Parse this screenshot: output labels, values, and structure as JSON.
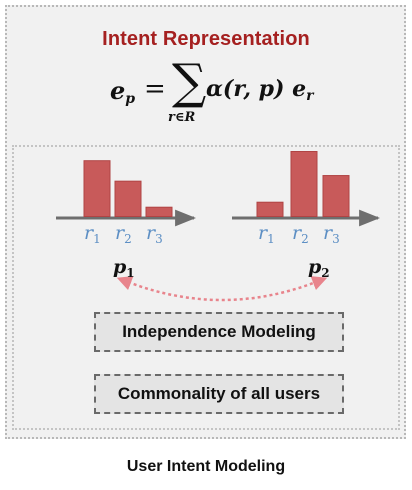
{
  "diagram": {
    "title": "Intent Representation",
    "caption": "User Intent Modeling",
    "formula": {
      "lhs_base": "e",
      "lhs_sub": "p",
      "equals": "=",
      "sum_symbol": "∑",
      "sum_index": "r∈R",
      "rhs": "α(r, p) e",
      "rhs_sub": "r"
    },
    "histograms": [
      {
        "label_base": "p",
        "label_sub": "1",
        "categories": [
          {
            "base": "r",
            "sub": "1"
          },
          {
            "base": "r",
            "sub": "2"
          },
          {
            "base": "r",
            "sub": "3"
          }
        ],
        "values": [
          0.9,
          0.57,
          0.15
        ]
      },
      {
        "label_base": "p",
        "label_sub": "2",
        "categories": [
          {
            "base": "r",
            "sub": "1"
          },
          {
            "base": "r",
            "sub": "2"
          },
          {
            "base": "r",
            "sub": "3"
          }
        ],
        "values": [
          0.22,
          1.0,
          0.63
        ]
      }
    ],
    "modules": {
      "independence": "Independence Modeling",
      "commonality": "Commonality of all users"
    },
    "colors": {
      "title": "#a52020",
      "bar_fill": "#c85a5a",
      "bar_stroke": "#b04444",
      "axis": "#6e6e6e",
      "r_label": "#5d8fc4",
      "link": "#e8848c"
    }
  }
}
